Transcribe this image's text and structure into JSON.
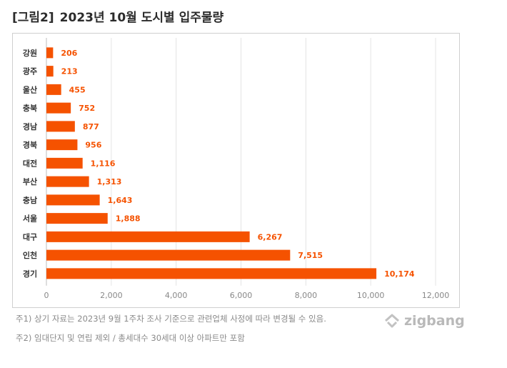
{
  "title": {
    "tag": "[그림2]",
    "text": "2023년 10월 도시별 입주물량"
  },
  "colors": {
    "bar": "#f55200",
    "label": "#f55200",
    "grid": "#e4e4e4",
    "axis": "#888888"
  },
  "chart_data": {
    "type": "bar",
    "orientation": "horizontal",
    "categories": [
      "강원",
      "광주",
      "울산",
      "충북",
      "경남",
      "경북",
      "대전",
      "부산",
      "충남",
      "서울",
      "대구",
      "인천",
      "경기"
    ],
    "values": [
      206,
      213,
      455,
      752,
      877,
      956,
      1116,
      1313,
      1643,
      1888,
      6267,
      7515,
      10174
    ],
    "value_labels": [
      "206",
      "213",
      "455",
      "752",
      "877",
      "956",
      "1,116",
      "1,313",
      "1,643",
      "1,888",
      "6,267",
      "7,515",
      "10,174"
    ],
    "xlim": [
      0,
      12000
    ],
    "xticks": [
      0,
      2000,
      4000,
      6000,
      8000,
      10000,
      12000
    ],
    "xtick_labels": [
      "0",
      "2,000",
      "4,000",
      "6,000",
      "8,000",
      "10,000",
      "12,000"
    ],
    "grid": true
  },
  "notes": [
    "주1) 상기 자료는 2023년 9월 1주차 조사 기준으로 관련업체 사정에 따라 변경될 수 있음.",
    "주2) 임대단지 및 연립 제외 / 총세대수 30세대 이상 아파트만 포함"
  ],
  "brand": {
    "name": "zigbang",
    "icon": "zigbang-logo-icon"
  }
}
